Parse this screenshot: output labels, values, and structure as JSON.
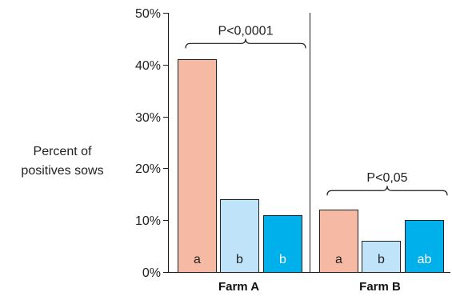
{
  "chart_data": {
    "type": "bar",
    "title": "",
    "ylabel_lines": [
      "Percent of",
      "positives sows"
    ],
    "ylim": [
      0,
      50
    ],
    "yticks": [
      {
        "value": 0,
        "label": "0%"
      },
      {
        "value": 10,
        "label": "10%"
      },
      {
        "value": 20,
        "label": "20%"
      },
      {
        "value": 30,
        "label": "30%"
      },
      {
        "value": 40,
        "label": "40%"
      },
      {
        "value": 50,
        "label": "50%"
      }
    ],
    "grid": false,
    "groups": [
      {
        "label": "Farm A",
        "significance": "P<0,0001",
        "bars": [
          {
            "value": 41,
            "letter": "a",
            "color": "#f5b9a4",
            "letter_color": "#222222"
          },
          {
            "value": 14,
            "letter": "b",
            "color": "#bfe3f8",
            "letter_color": "#222222"
          },
          {
            "value": 11,
            "letter": "b",
            "color": "#00b0ea",
            "letter_color": "#ffffff"
          }
        ]
      },
      {
        "label": "Farm B",
        "significance": "P<0,05",
        "bars": [
          {
            "value": 12,
            "letter": "a",
            "color": "#f5b9a4",
            "letter_color": "#222222"
          },
          {
            "value": 6,
            "letter": "b",
            "color": "#bfe3f8",
            "letter_color": "#222222"
          },
          {
            "value": 10,
            "letter": "ab",
            "color": "#00b0ea",
            "letter_color": "#ffffff"
          }
        ]
      }
    ]
  }
}
